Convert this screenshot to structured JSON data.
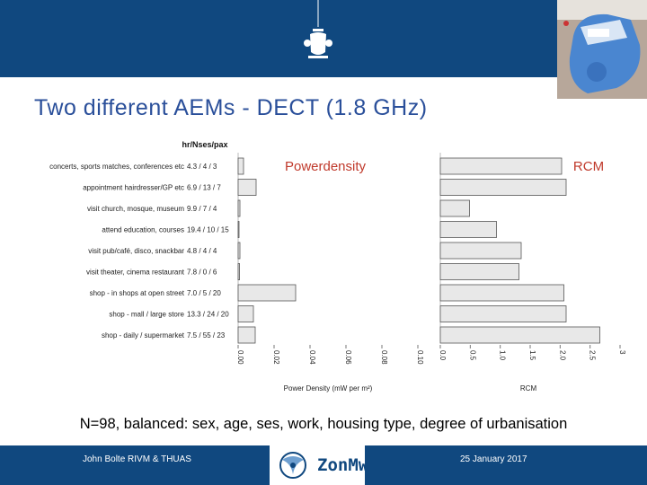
{
  "slide": {
    "title": "Two different AEMs - DECT (1.8 GHz)",
    "note": "N=98, balanced: sex, age, ses, work, housing type, degree of urbanisation",
    "footer_left": "John Bolte RIVM & THUAS",
    "footer_logo_text": "ZonMw",
    "footer_date": "25 January 2017"
  },
  "colors": {
    "header_band": "#10487f",
    "title": "#2a4f9a",
    "chart_panel_title": "#c0392b",
    "bar_fill": "#e8e8e8",
    "bar_stroke": "#555555"
  },
  "chart_data": [
    {
      "type": "bar",
      "orientation": "horizontal",
      "title": "Powerdensity",
      "column_header": "hr/Nses/pax",
      "categories": [
        "concerts, sports matches, conferences etc",
        "appointment hairdresser/GP etc",
        "visit church, mosque, museum",
        "attend education, courses",
        "visit pub/café, disco, snackbar",
        "visit theater, cinema restaurant",
        "shop - in shops at open street",
        "shop - mall / large store",
        "shop - daily / supermarket"
      ],
      "row_stats": [
        "4.3 / 4 / 3",
        "6.9 / 13 / 7",
        "9.9 / 7 / 4",
        "19.4 / 10 / 15",
        "4.8 / 4 / 4",
        "7.8 / 0 / 6",
        "7.0 / 5 / 20",
        "13.3 / 24 / 20",
        "7.5 / 55 / 23"
      ],
      "values": [
        0.003,
        0.01,
        0.001,
        0.0005,
        0.001,
        0.0008,
        0.032,
        0.0085,
        0.0095
      ],
      "x_tick_labels": [
        "0.00",
        "0.02",
        "0.04",
        "0.06",
        "0.08",
        "0.10"
      ],
      "xlim": [
        0,
        0.1
      ],
      "xlabel": "Power Density (mW per m²)"
    },
    {
      "type": "bar",
      "orientation": "horizontal",
      "title": "RCM",
      "categories": [
        "concerts, sports matches, conferences etc",
        "appointment hairdresser/GP etc",
        "visit church, mosque, museum",
        "attend education, courses",
        "visit pub/café, disco, snackbar",
        "visit theater, cinema restaurant",
        "shop - in shops at open street",
        "shop - mall / large store",
        "shop - daily / supermarket"
      ],
      "values": [
        2.7,
        2.8,
        0.65,
        1.25,
        1.8,
        1.75,
        2.75,
        2.8,
        3.55
      ],
      "x_tick_labels": [
        "0.0",
        "0.5",
        "1.0",
        "1.5",
        "2.0",
        "2.5",
        "3"
      ],
      "xlim": [
        0,
        4
      ],
      "xlabel": "RCM"
    }
  ]
}
